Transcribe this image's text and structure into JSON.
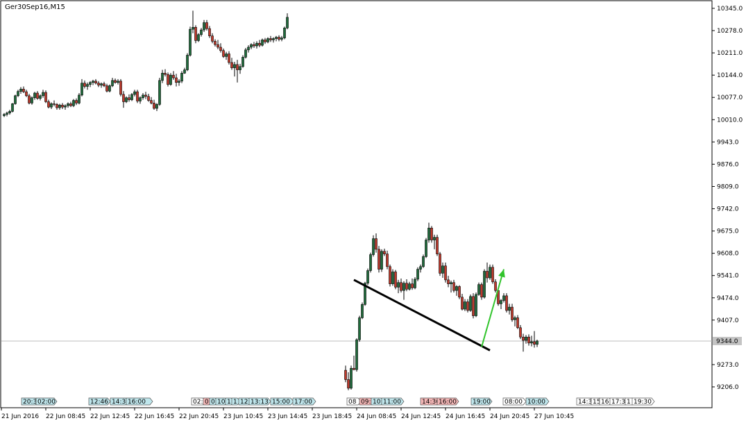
{
  "chart_data": {
    "type": "candlestick",
    "symbol_label": "Ger30Sep16,M15",
    "y_ticks": [
      "10345.0",
      "10278.0",
      "10211.0",
      "10144.0",
      "10077.0",
      "10010.0",
      "9943.0",
      "9876.0",
      "9809.0",
      "9742.0",
      "9675.0",
      "9608.0",
      "9541.0",
      "9474.0",
      "9407.0",
      "9273.0",
      "9206.0"
    ],
    "y_tick_values": [
      10345,
      10278,
      10211,
      10144,
      10077,
      10010,
      9943,
      9876,
      9809,
      9742,
      9675,
      9608,
      9541,
      9474,
      9407,
      9273,
      9206
    ],
    "ylim": [
      9180,
      10362
    ],
    "x_tick_labels": [
      "21 Jun 2016",
      "22 Jun 08:45",
      "22 Jun 12:45",
      "22 Jun 16:45",
      "22 Jun 20:45",
      "23 Jun 10:45",
      "23 Jun 14:45",
      "23 Jun 18:45",
      "24 Jun 08:45",
      "24 Jun 12:45",
      "24 Jun 16:45",
      "24 Jun 20:45",
      "27 Jun 10:45"
    ],
    "current_price": {
      "label": "9344.0",
      "value": 9344
    },
    "event_markers": [
      {
        "text": "20:3",
        "color": "#bfe6ec"
      },
      {
        "text": "02:00",
        "color": "#bfe6ec"
      },
      {
        "text": "12:46",
        "color": "#bfe6ec"
      },
      {
        "text": "14:30",
        "color": "#bfe6ec"
      },
      {
        "text": "16:00",
        "color": "#bfe6ec"
      },
      {
        "text": "02:",
        "color": "#ffffff"
      },
      {
        "text": "0",
        "color": "#f4b6b6"
      },
      {
        "text": "0",
        "color": "#bfe6ec"
      },
      {
        "text": "10:",
        "color": "#bfe6ec"
      },
      {
        "text": "1",
        "color": "#bfe6ec"
      },
      {
        "text": "1",
        "color": "#bfe6ec"
      },
      {
        "text": "12:",
        "color": "#bfe6ec"
      },
      {
        "text": "13:13",
        "color": "#bfe6ec"
      },
      {
        "text": "15:00",
        "color": "#bfe6ec"
      },
      {
        "text": "17:00",
        "color": "#bfe6ec"
      },
      {
        "text": "08",
        "color": "#ffffff"
      },
      {
        "text": "09:",
        "color": "#f4b6b6"
      },
      {
        "text": "10:",
        "color": "#bfe6ec"
      },
      {
        "text": "11:00",
        "color": "#bfe6ec"
      },
      {
        "text": "14:30",
        "color": "#f4b6b6"
      },
      {
        "text": "16:00",
        "color": "#f4b6b6"
      },
      {
        "text": "19:00",
        "color": "#bfe6ec"
      },
      {
        "text": "08:00",
        "color": "#ffffff"
      },
      {
        "text": "10:00",
        "color": "#bfe6ec"
      },
      {
        "text": "14:3",
        "color": "#ffffff"
      },
      {
        "text": "15",
        "color": "#ffffff"
      },
      {
        "text": "16:",
        "color": "#ffffff"
      },
      {
        "text": "17:30",
        "color": "#ffffff"
      },
      {
        "text": "1",
        "color": "#ffffff"
      },
      {
        "text": "19:30",
        "color": "#ffffff"
      }
    ],
    "candles": [
      [
        10022,
        10030,
        10018,
        10026
      ],
      [
        10026,
        10034,
        10020,
        10030
      ],
      [
        10030,
        10040,
        10025,
        10035
      ],
      [
        10035,
        10060,
        10032,
        10058
      ],
      [
        10058,
        10085,
        10055,
        10082
      ],
      [
        10082,
        10100,
        10078,
        10095
      ],
      [
        10095,
        10108,
        10088,
        10102
      ],
      [
        10102,
        10110,
        10090,
        10094
      ],
      [
        10094,
        10100,
        10078,
        10082
      ],
      [
        10082,
        10088,
        10056,
        10060
      ],
      [
        10060,
        10080,
        10055,
        10076
      ],
      [
        10076,
        10094,
        10070,
        10090
      ],
      [
        10090,
        10096,
        10070,
        10074
      ],
      [
        10074,
        10086,
        10068,
        10082
      ],
      [
        10082,
        10100,
        10076,
        10092
      ],
      [
        10092,
        10098,
        10060,
        10064
      ],
      [
        10064,
        10070,
        10044,
        10048
      ],
      [
        10048,
        10062,
        10042,
        10058
      ],
      [
        10058,
        10068,
        10050,
        10056
      ],
      [
        10056,
        10060,
        10040,
        10046
      ],
      [
        10046,
        10058,
        10040,
        10054
      ],
      [
        10054,
        10060,
        10042,
        10048
      ],
      [
        10048,
        10056,
        10040,
        10052
      ],
      [
        10052,
        10062,
        10046,
        10058
      ],
      [
        10058,
        10064,
        10048,
        10052
      ],
      [
        10052,
        10072,
        10048,
        10068
      ],
      [
        10068,
        10074,
        10054,
        10060
      ],
      [
        10060,
        10090,
        10056,
        10084
      ],
      [
        10084,
        10132,
        10080,
        10120
      ],
      [
        10120,
        10128,
        10104,
        10110
      ],
      [
        10110,
        10122,
        10100,
        10116
      ],
      [
        10116,
        10126,
        10108,
        10122
      ],
      [
        10122,
        10130,
        10114,
        10126
      ],
      [
        10126,
        10132,
        10116,
        10120
      ],
      [
        10120,
        10126,
        10108,
        10114
      ],
      [
        10114,
        10122,
        10106,
        10118
      ],
      [
        10118,
        10124,
        10108,
        10112
      ],
      [
        10112,
        10118,
        10092,
        10096
      ],
      [
        10096,
        10116,
        10092,
        10112
      ],
      [
        10112,
        10136,
        10108,
        10128
      ],
      [
        10128,
        10134,
        10118,
        10122
      ],
      [
        10122,
        10132,
        10116,
        10126
      ],
      [
        10126,
        10132,
        10080,
        10086
      ],
      [
        10086,
        10096,
        10046,
        10064
      ],
      [
        10064,
        10080,
        10060,
        10076
      ],
      [
        10076,
        10086,
        10064,
        10070
      ],
      [
        10070,
        10090,
        10066,
        10086
      ],
      [
        10086,
        10100,
        10080,
        10094
      ],
      [
        10094,
        10100,
        10060,
        10066
      ],
      [
        10066,
        10080,
        10058,
        10076
      ],
      [
        10076,
        10090,
        10070,
        10084
      ],
      [
        10084,
        10094,
        10072,
        10080
      ],
      [
        10080,
        10088,
        10064,
        10068
      ],
      [
        10068,
        10078,
        10056,
        10060
      ],
      [
        10060,
        10070,
        10040,
        10044
      ],
      [
        10044,
        10060,
        10036,
        10056
      ],
      [
        10056,
        10136,
        10052,
        10128
      ],
      [
        10128,
        10160,
        10120,
        10150
      ],
      [
        10150,
        10162,
        10140,
        10146
      ],
      [
        10146,
        10152,
        10110,
        10116
      ],
      [
        10116,
        10150,
        10112,
        10144
      ],
      [
        10144,
        10156,
        10130,
        10136
      ],
      [
        10136,
        10148,
        10110,
        10122
      ],
      [
        10122,
        10132,
        10112,
        10126
      ],
      [
        10126,
        10156,
        10120,
        10150
      ],
      [
        10150,
        10166,
        10148,
        10160
      ],
      [
        10160,
        10210,
        10156,
        10204
      ],
      [
        10204,
        10290,
        10200,
        10282
      ],
      [
        10282,
        10338,
        10270,
        10288
      ],
      [
        10288,
        10294,
        10240,
        10248
      ],
      [
        10248,
        10270,
        10244,
        10266
      ],
      [
        10266,
        10286,
        10260,
        10280
      ],
      [
        10280,
        10310,
        10274,
        10302
      ],
      [
        10302,
        10310,
        10278,
        10284
      ],
      [
        10284,
        10292,
        10256,
        10262
      ],
      [
        10262,
        10270,
        10240,
        10246
      ],
      [
        10246,
        10252,
        10230,
        10236
      ],
      [
        10236,
        10250,
        10222,
        10228
      ],
      [
        10228,
        10240,
        10212,
        10218
      ],
      [
        10218,
        10224,
        10196,
        10200
      ],
      [
        10200,
        10214,
        10190,
        10208
      ],
      [
        10208,
        10216,
        10176,
        10182
      ],
      [
        10182,
        10196,
        10160,
        10166
      ],
      [
        10166,
        10184,
        10140,
        10176
      ],
      [
        10176,
        10190,
        10122,
        10160
      ],
      [
        10160,
        10178,
        10148,
        10170
      ],
      [
        10170,
        10204,
        10166,
        10198
      ],
      [
        10198,
        10226,
        10194,
        10220
      ],
      [
        10220,
        10234,
        10212,
        10228
      ],
      [
        10228,
        10240,
        10222,
        10236
      ],
      [
        10236,
        10244,
        10226,
        10232
      ],
      [
        10232,
        10246,
        10224,
        10240
      ],
      [
        10240,
        10250,
        10228,
        10234
      ],
      [
        10234,
        10254,
        10230,
        10250
      ],
      [
        10250,
        10256,
        10238,
        10244
      ],
      [
        10244,
        10258,
        10240,
        10254
      ],
      [
        10254,
        10262,
        10244,
        10250
      ],
      [
        10250,
        10258,
        10242,
        10254
      ],
      [
        10254,
        10262,
        10246,
        10258
      ],
      [
        10258,
        10264,
        10246,
        10252
      ],
      [
        10252,
        10262,
        10246,
        10256
      ],
      [
        10256,
        10290,
        10252,
        10286
      ],
      [
        10286,
        10330,
        10282,
        10318
      ],
      null,
      null,
      null,
      null,
      null,
      null,
      null,
      null,
      null,
      null,
      null,
      null,
      null,
      null,
      null,
      null,
      null,
      null,
      null,
      null,
      [
        9256,
        9270,
        9220,
        9228
      ],
      [
        9228,
        9250,
        9196,
        9202
      ],
      [
        9202,
        9270,
        9198,
        9262
      ],
      [
        9262,
        9300,
        9256,
        9258
      ],
      [
        9258,
        9352,
        9252,
        9348
      ],
      [
        9348,
        9420,
        9342,
        9414
      ],
      [
        9414,
        9460,
        9410,
        9454
      ],
      [
        9454,
        9522,
        9450,
        9518
      ],
      [
        9518,
        9562,
        9512,
        9556
      ],
      [
        9556,
        9610,
        9550,
        9604
      ],
      [
        9604,
        9662,
        9598,
        9652
      ],
      [
        9652,
        9668,
        9610,
        9620
      ],
      [
        9620,
        9630,
        9550,
        9560
      ],
      [
        9560,
        9620,
        9552,
        9614
      ],
      [
        9614,
        9622,
        9600,
        9606
      ],
      [
        9606,
        9616,
        9560,
        9568
      ],
      [
        9568,
        9574,
        9508,
        9516
      ],
      [
        9516,
        9560,
        9510,
        9552
      ],
      [
        9552,
        9558,
        9500,
        9506
      ],
      [
        9506,
        9528,
        9488,
        9520
      ],
      [
        9520,
        9532,
        9490,
        9496
      ],
      [
        9496,
        9524,
        9468,
        9518
      ],
      [
        9518,
        9530,
        9494,
        9500
      ],
      [
        9500,
        9522,
        9496,
        9516
      ],
      [
        9516,
        9532,
        9498,
        9504
      ],
      [
        9504,
        9536,
        9500,
        9530
      ],
      [
        9530,
        9566,
        9524,
        9560
      ],
      [
        9560,
        9574,
        9550,
        9568
      ],
      [
        9568,
        9604,
        9564,
        9598
      ],
      [
        9598,
        9654,
        9594,
        9648
      ],
      [
        9648,
        9700,
        9640,
        9684
      ],
      [
        9684,
        9690,
        9640,
        9648
      ],
      [
        9648,
        9664,
        9620,
        9656
      ],
      [
        9656,
        9664,
        9600,
        9606
      ],
      [
        9606,
        9612,
        9540,
        9548
      ],
      [
        9548,
        9580,
        9534,
        9570
      ],
      [
        9570,
        9580,
        9520,
        9528
      ],
      [
        9528,
        9540,
        9506,
        9516
      ],
      [
        9516,
        9526,
        9490,
        9520
      ],
      [
        9520,
        9528,
        9490,
        9496
      ],
      [
        9496,
        9512,
        9480,
        9508
      ],
      [
        9508,
        9512,
        9470,
        9476
      ],
      [
        9476,
        9486,
        9436,
        9440
      ],
      [
        9440,
        9470,
        9434,
        9462
      ],
      [
        9462,
        9470,
        9430,
        9436
      ],
      [
        9436,
        9484,
        9432,
        9478
      ],
      [
        9478,
        9488,
        9412,
        9420
      ],
      [
        9420,
        9490,
        9416,
        9484
      ],
      [
        9484,
        9520,
        9480,
        9514
      ],
      [
        9514,
        9520,
        9468,
        9476
      ],
      [
        9476,
        9560,
        9472,
        9554
      ],
      [
        9554,
        9580,
        9520,
        9534
      ],
      [
        9534,
        9574,
        9528,
        9566
      ],
      [
        9566,
        9574,
        9516,
        9522
      ],
      [
        9522,
        9530,
        9490,
        9496
      ],
      [
        9496,
        9504,
        9450,
        9456
      ],
      [
        9456,
        9470,
        9440,
        9466
      ],
      [
        9466,
        9488,
        9460,
        9480
      ],
      [
        9480,
        9488,
        9430,
        9436
      ],
      [
        9436,
        9456,
        9424,
        9446
      ],
      [
        9446,
        9456,
        9402,
        9408
      ],
      [
        9408,
        9420,
        9388,
        9414
      ],
      [
        9414,
        9422,
        9380,
        9384
      ],
      [
        9384,
        9392,
        9350,
        9356
      ],
      [
        9356,
        9366,
        9312,
        9346
      ],
      [
        9346,
        9362,
        9336,
        9356
      ],
      [
        9356,
        9364,
        9330,
        9338
      ],
      [
        9338,
        9360,
        9328,
        9342
      ],
      [
        9342,
        9374,
        9324,
        9334
      ],
      [
        9334,
        9348,
        9326,
        9344
      ]
    ],
    "trendline": {
      "x_start_index": 126,
      "y_start": 9528,
      "x_end_index": 175,
      "y_end": 9316,
      "color": "#000000"
    },
    "arrow": {
      "x_start_index": 172,
      "y_start": 9326,
      "x_end_index": 180,
      "y_end": 9560,
      "color": "#31c42c"
    },
    "grid": false,
    "bull_color": "#1f6b3b",
    "bear_color": "#c0392b"
  }
}
